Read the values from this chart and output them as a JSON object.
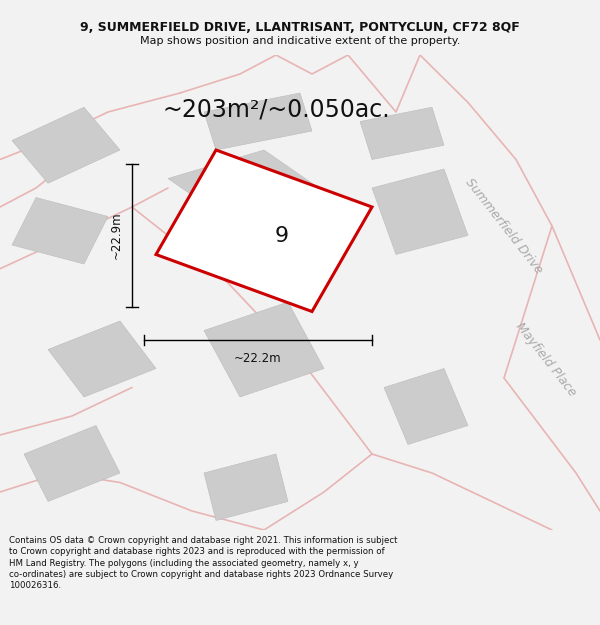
{
  "title_line1": "9, SUMMERFIELD DRIVE, LLANTRISANT, PONTYCLUN, CF72 8QF",
  "title_line2": "Map shows position and indicative extent of the property.",
  "area_label": "~203m²/~0.050ac.",
  "plot_number": "9",
  "dim_vertical": "~22.9m",
  "dim_horizontal": "~22.2m",
  "street_label1": "Summerfield Drive",
  "street_label2": "Mayfield Place",
  "footer_lines": [
    "Contains OS data © Crown copyright and database right 2021. This information is subject",
    "to Crown copyright and database rights 2023 and is reproduced with the permission of",
    "HM Land Registry. The polygons (including the associated geometry, namely x, y",
    "co-ordinates) are subject to Crown copyright and database rights 2023 Ordnance Survey",
    "100026316."
  ],
  "bg_color": "#f2f2f2",
  "map_bg": "#ffffff",
  "plot_fill": "#ffffff",
  "plot_edge": "#cc0000",
  "road_color": "#e8b4b4",
  "building_fill": "#cccccc",
  "building_edge": "#bbbbbb",
  "dim_color": "#000000",
  "street_text_color": "#aaaaaa",
  "title_fontsize": 9,
  "subtitle_fontsize": 8,
  "area_fontsize": 17,
  "plot_num_fontsize": 16,
  "dim_fontsize": 8.5,
  "street_fontsize": 9,
  "footer_fontsize": 6.2
}
